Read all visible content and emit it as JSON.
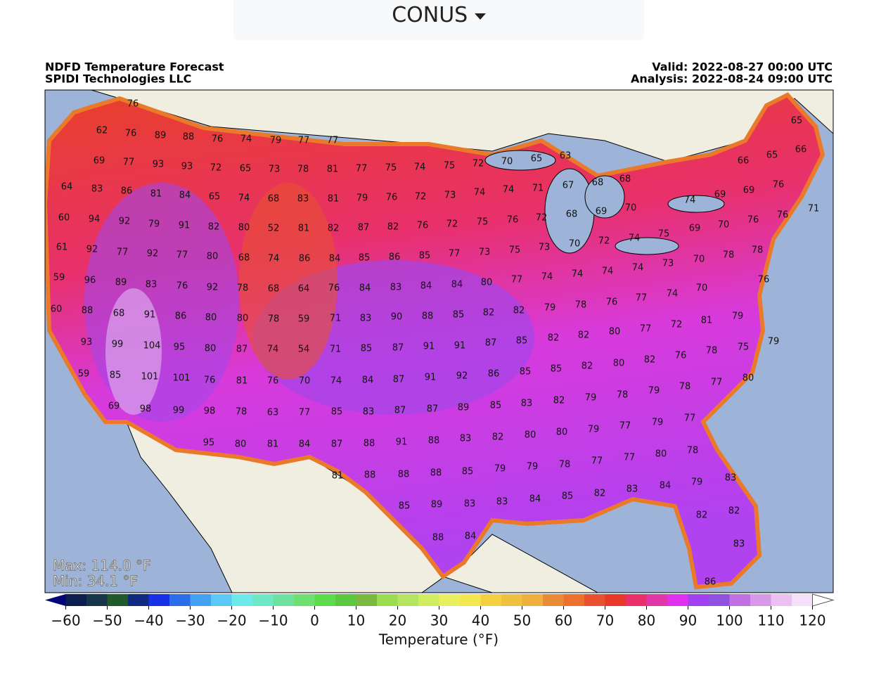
{
  "dropdown": {
    "label": "CONUS"
  },
  "map": {
    "title": "NDFD Temperature Forecast",
    "source": "SPIDI Technologies LLC",
    "valid": "Valid: 2022-08-27 00:00 UTC",
    "analysis": "Analysis: 2022-08-24 09:00 UTC",
    "max": "Max: 114.0 °F",
    "min": "Min: 34.1 °F",
    "station_values": [
      76,
      62,
      76,
      89,
      88,
      76,
      74,
      79,
      77,
      77,
      65,
      69,
      77,
      93,
      93,
      72,
      65,
      73,
      78,
      81,
      77,
      75,
      74,
      75,
      72,
      70,
      65,
      63,
      66,
      65,
      66,
      64,
      83,
      86,
      81,
      84,
      65,
      74,
      68,
      83,
      81,
      79,
      76,
      72,
      73,
      74,
      74,
      71,
      67,
      68,
      68,
      74,
      69,
      69,
      76,
      60,
      94,
      92,
      79,
      91,
      82,
      80,
      52,
      81,
      82,
      87,
      82,
      76,
      72,
      75,
      76,
      72,
      68,
      69,
      70,
      69,
      70,
      76,
      76,
      71,
      61,
      92,
      77,
      92,
      77,
      80,
      68,
      74,
      86,
      84,
      85,
      86,
      85,
      77,
      73,
      75,
      73,
      70,
      72,
      74,
      75,
      78,
      78,
      70,
      73,
      74,
      74,
      74,
      74,
      77,
      59,
      96,
      89,
      83,
      76,
      92,
      78,
      68,
      64,
      76,
      84,
      83,
      84,
      84,
      80,
      76,
      70,
      74,
      77,
      76,
      78,
      79,
      82,
      82,
      85,
      60,
      88,
      68,
      91,
      86,
      80,
      80,
      78,
      59,
      71,
      83,
      90,
      88,
      81,
      79,
      72,
      77,
      80,
      82,
      82,
      85,
      87,
      91,
      91,
      87,
      85,
      71,
      54,
      74,
      87,
      80,
      95,
      104,
      99,
      93,
      79,
      75,
      78,
      76,
      82,
      80,
      82,
      85,
      85,
      86,
      92,
      91,
      87,
      84,
      74,
      70,
      76,
      81,
      76,
      101,
      101,
      85,
      59,
      80,
      77,
      78,
      79,
      78,
      79,
      82,
      83,
      85,
      89,
      87,
      87,
      83,
      85,
      77,
      63,
      78,
      98,
      99,
      98,
      69,
      77,
      79,
      77,
      79,
      80,
      80,
      82,
      83,
      88,
      91,
      88,
      87,
      84,
      81,
      80,
      95,
      78,
      80,
      77,
      77,
      78,
      79,
      79,
      85,
      88,
      88,
      88,
      81,
      83,
      79,
      84,
      83,
      82,
      85,
      84,
      83,
      83,
      89,
      85,
      82,
      82,
      83,
      84,
      88,
      86
    ]
  },
  "colorbar": {
    "label": "Temperature (°F)",
    "xlim": [
      -65,
      125
    ],
    "xticks": [
      {
        "value": -60,
        "label": "−60"
      },
      {
        "value": -50,
        "label": "−50"
      },
      {
        "value": -40,
        "label": "−40"
      },
      {
        "value": -30,
        "label": "−30"
      },
      {
        "value": -20,
        "label": "−20"
      },
      {
        "value": -10,
        "label": "−10"
      },
      0,
      10,
      20,
      30,
      40,
      50,
      60,
      70,
      80,
      90,
      100,
      110,
      120
    ],
    "colors": [
      "#04047a",
      "#0c1e4e",
      "#17354a",
      "#1f5a2a",
      "#102a80",
      "#1830e8",
      "#2a6fe8",
      "#44a0f0",
      "#5cc8f5",
      "#6ee8e8",
      "#70e8c8",
      "#6ee0a0",
      "#6ee070",
      "#5cdc4a",
      "#5cc840",
      "#7ab840",
      "#9cdc50",
      "#b4e460",
      "#d0ec60",
      "#e8f060",
      "#f4e850",
      "#f4d040",
      "#f0c040",
      "#f0b040",
      "#e88c38",
      "#ec7030",
      "#e85030",
      "#e83828",
      "#e8306a",
      "#e038a8",
      "#e030f0",
      "#a040f0",
      "#9050e0",
      "#c070e0",
      "#d898e8",
      "#ecc0f0",
      "#f4e0f8",
      "#ffffff"
    ]
  }
}
